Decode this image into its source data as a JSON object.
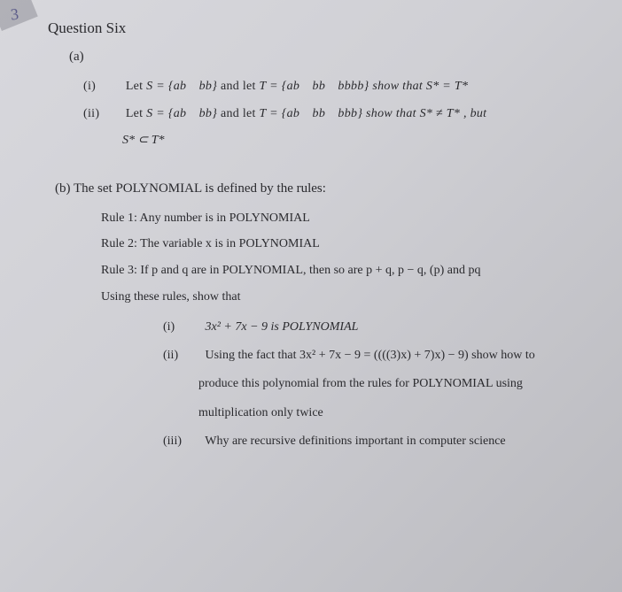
{
  "title": "Question Six",
  "partA": {
    "label": "(a)",
    "i": {
      "num": "(i)",
      "text_before": "Let ",
      "s_eq": "S = {ab bb}",
      "mid": " and let ",
      "t_eq": "T = {ab bb bbbb}",
      "tail": " show that  S* = T*"
    },
    "ii": {
      "num": "(ii)",
      "text_before": "Let ",
      "s_eq": "S = {ab bb}",
      "mid": " and let ",
      "t_eq": "T = {ab bb bbb}",
      "tail": " show that  S* ≠ T* , but",
      "line2": "S* ⊂ T*"
    }
  },
  "partB": {
    "intro": "(b) The set POLYNOMIAL is defined by the rules:",
    "rule1": "Rule 1: Any number is in POLYNOMIAL",
    "rule2": "Rule 2: The variable x is in POLYNOMIAL",
    "rule3": "Rule 3: If p and q are in POLYNOMIAL, then so are  p + q,  p − q,  (p) and  pq",
    "using": "Using these rules, show that",
    "bi": {
      "num": "(i)",
      "text": "3x² + 7x − 9  is  POLYNOMIAL"
    },
    "bii": {
      "num": "(ii)",
      "line1": "Using the fact that  3x² + 7x − 9 = ((((3)x) + 7)x) − 9)  show how to",
      "line2": "produce this polynomial from the rules for POLYNOMIAL using",
      "line3": "multiplication only twice"
    },
    "biii": {
      "num": "(iii)",
      "text": "Why are recursive definitions important in computer science"
    }
  },
  "corner_scribble": "3"
}
